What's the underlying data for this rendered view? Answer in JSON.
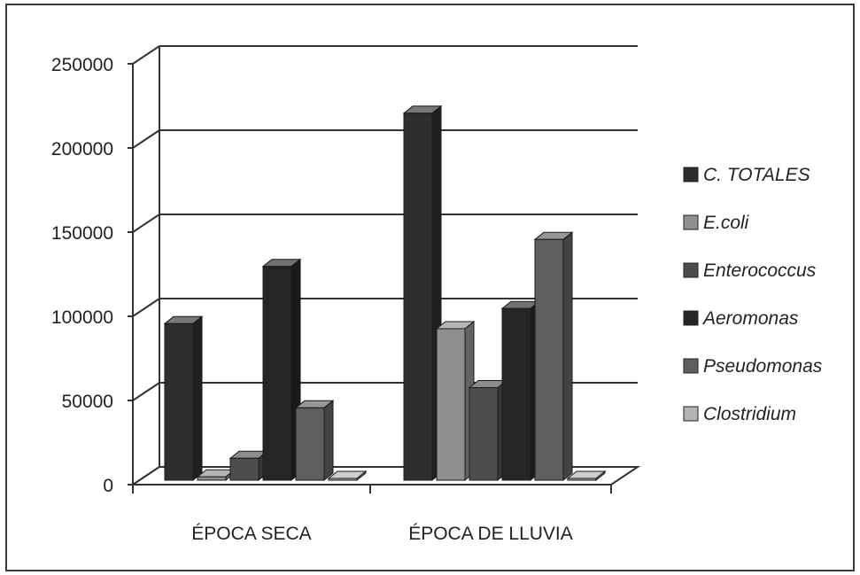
{
  "chart_data": {
    "type": "bar",
    "categories": [
      "ÉPOCA SECA",
      "ÉPOCA DE LLUVIA"
    ],
    "series": [
      {
        "name": "C. TOTALES",
        "values": [
          93000,
          218000
        ],
        "color": "#2e2e2e"
      },
      {
        "name": "E.coli",
        "values": [
          2000,
          90000
        ],
        "color": "#8f8f8f"
      },
      {
        "name": "Enterococcus",
        "values": [
          13000,
          55000
        ],
        "color": "#4d4d4d"
      },
      {
        "name": "Aeromonas",
        "values": [
          127000,
          102000
        ],
        "color": "#252525"
      },
      {
        "name": "Pseudomonas",
        "values": [
          43000,
          143000
        ],
        "color": "#5e5e5e"
      },
      {
        "name": "Clostridium",
        "values": [
          300,
          300
        ],
        "color": "#b3b3b3"
      }
    ],
    "y_ticks": [
      "0",
      "50000",
      "100000",
      "150000",
      "200000",
      "250000"
    ],
    "ylim": [
      0,
      250000
    ],
    "title": "",
    "xlabel": "",
    "ylabel": "",
    "grid": true,
    "legend": "right",
    "style": "3d-clustered-bar"
  }
}
